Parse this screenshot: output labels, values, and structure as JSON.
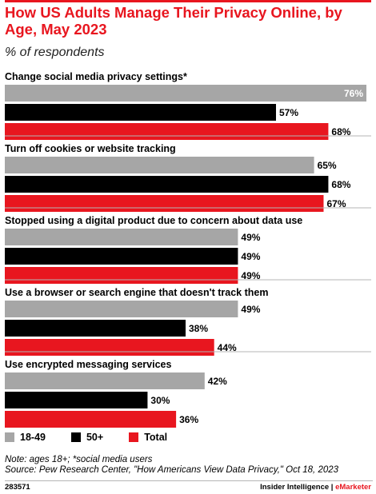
{
  "title": "How US Adults Manage Their Privacy Online, by Age, May 2023",
  "subtitle": "% of respondents",
  "note": "Note: ages 18+; *social media users",
  "source": "Source: Pew Research Center, \"How Americans View Data Privacy,\" Oct 18, 2023",
  "chart_id": "283571",
  "brand": {
    "left": "Insider Intelligence",
    "sep": " | ",
    "right": "eMarketer"
  },
  "colors": {
    "series_18_49": "#a6a6a6",
    "series_50plus": "#000000",
    "series_total": "#e8161f",
    "accent": "#e8161f"
  },
  "chart_data": {
    "type": "bar",
    "orientation": "horizontal",
    "categories": [
      "Change social media privacy settings*",
      "Turn off cookies or website tracking",
      "Stopped using a digital product due to concern about data use",
      "Use a browser or search engine that doesn't track them",
      "Use encrypted messaging services"
    ],
    "series": [
      {
        "name": "18-49",
        "values": [
          76,
          65,
          49,
          49,
          42
        ]
      },
      {
        "name": "50+",
        "values": [
          57,
          68,
          49,
          38,
          30
        ]
      },
      {
        "name": "Total",
        "values": [
          68,
          67,
          49,
          44,
          36
        ]
      }
    ],
    "value_suffix": "%",
    "xlim": [
      0,
      76
    ],
    "legend_position": "bottom-left",
    "grid": false
  }
}
